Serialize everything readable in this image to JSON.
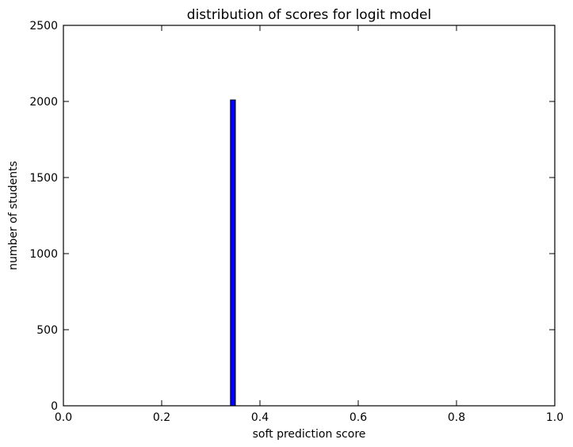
{
  "chart_data": {
    "type": "bar",
    "title": "distribution of scores for logit model",
    "xlabel": "soft prediction score",
    "ylabel": "number of students",
    "xlim": [
      0.0,
      1.0
    ],
    "ylim": [
      0,
      2500
    ],
    "x_ticks": [
      "0.0",
      "0.2",
      "0.4",
      "0.6",
      "0.8",
      "1.0"
    ],
    "y_ticks": [
      "0",
      "500",
      "1000",
      "1500",
      "2000",
      "2500"
    ],
    "bins": [
      {
        "x_start": 0.34,
        "x_end": 0.35,
        "count": 2010
      }
    ],
    "bar_color": "#0000ff",
    "grid": false,
    "legend": "none"
  }
}
